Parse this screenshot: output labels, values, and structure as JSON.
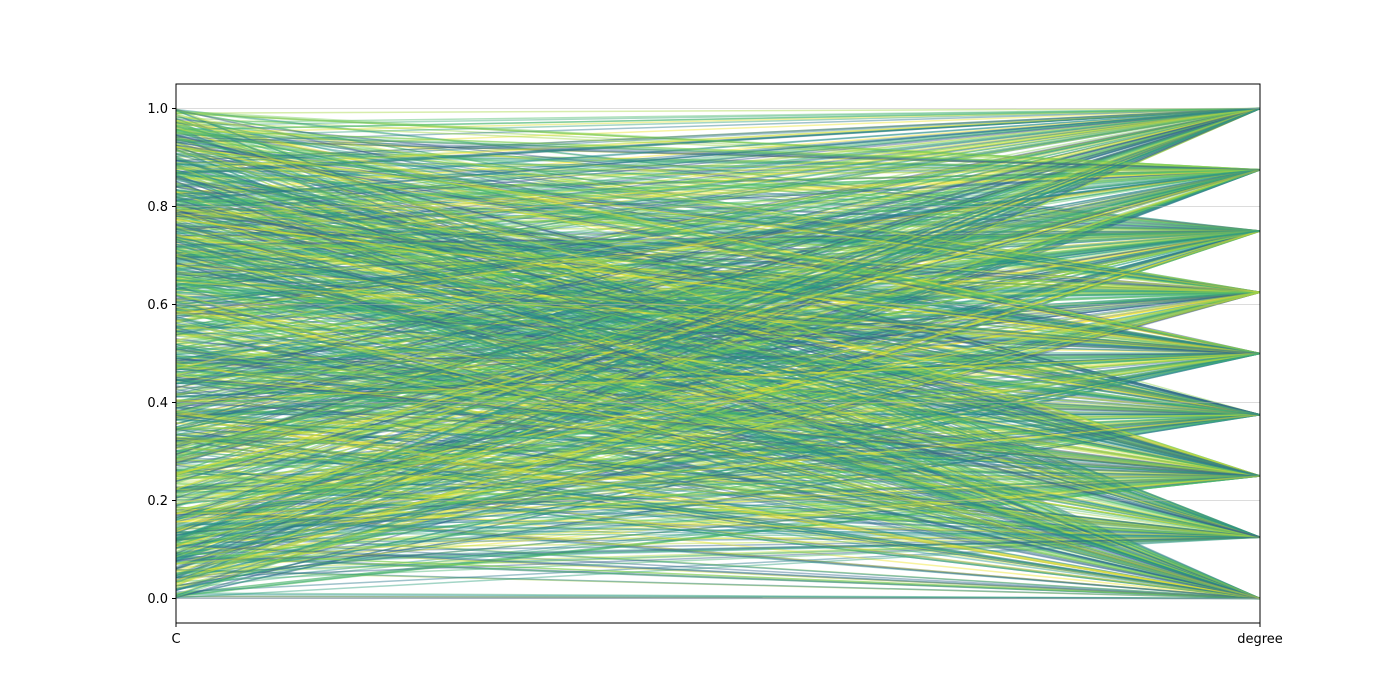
{
  "chart_data": {
    "type": "line",
    "subtype": "parallel-coordinates",
    "title": "",
    "xlabel": "",
    "ylabel": "",
    "axes": [
      "C",
      "degree"
    ],
    "ylim": [
      -0.05,
      1.05
    ],
    "y_ticks": [
      0.0,
      0.2,
      0.4,
      0.6,
      0.8,
      1.0
    ],
    "y_tick_labels": [
      "0.0",
      "0.2",
      "0.4",
      "0.6",
      "0.8",
      "1.0"
    ],
    "degree_levels": [
      0.0,
      0.125,
      0.25,
      0.375,
      0.5,
      0.625,
      0.75,
      0.875,
      1.0
    ],
    "line_count": 1200,
    "line_alpha": 0.45,
    "colormap": [
      "#440154",
      "#3b528b",
      "#21918c",
      "#5ec962",
      "#fde725"
    ],
    "grid": "horizontal gridlines on degree axis",
    "legend": "none",
    "axis_line_color": "#b0b0b0",
    "frame_color": "#000000"
  }
}
